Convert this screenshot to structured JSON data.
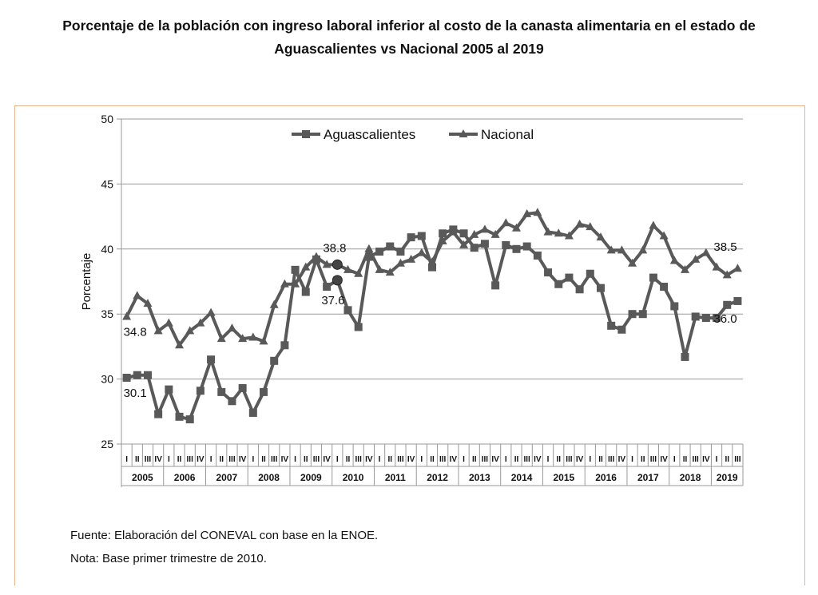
{
  "title_line1": "Porcentaje de la población con ingreso laboral inferior al costo de la canasta alimentaria en el estado de",
  "title_line2": "Aguascalientes vs Nacional 2005 al 2019",
  "chart_data": {
    "type": "line",
    "title": "Porcentaje de la población con ingreso laboral inferior al costo de la canasta alimentaria en el estado de Aguascalientes vs Nacional 2005 al 2019",
    "xlabel": "",
    "ylabel": "Porcentaje",
    "ylim": [
      25,
      50
    ],
    "yticks": [
      25,
      30,
      35,
      40,
      45,
      50
    ],
    "grid": true,
    "legend_position": "top-center",
    "years": [
      "2005",
      "2006",
      "2007",
      "2008",
      "2009",
      "2010",
      "2011",
      "2012",
      "2013",
      "2014",
      "2015",
      "2016",
      "2017",
      "2018",
      "2019"
    ],
    "quarters": [
      "I",
      "II",
      "III",
      "IV"
    ],
    "series": [
      {
        "name": "Aguascalientes",
        "marker": "square",
        "values": [
          30.1,
          30.3,
          30.3,
          27.3,
          29.2,
          27.1,
          26.9,
          29.1,
          31.5,
          29.0,
          28.3,
          29.3,
          27.4,
          29.0,
          31.4,
          32.6,
          38.4,
          36.7,
          39.2,
          37.1,
          37.6,
          35.3,
          34.0,
          39.4,
          39.8,
          40.2,
          39.8,
          40.9,
          41.0,
          38.6,
          41.2,
          41.5,
          41.2,
          40.1,
          40.4,
          37.2,
          40.3,
          40.0,
          40.2,
          39.5,
          38.2,
          37.3,
          37.8,
          36.9,
          38.1,
          37.0,
          34.1,
          33.8,
          35.0,
          35.0,
          37.8,
          37.1,
          35.6,
          31.7,
          34.8,
          34.7,
          34.7,
          35.7,
          36.0
        ]
      },
      {
        "name": "Nacional",
        "marker": "triangle",
        "values": [
          34.8,
          36.4,
          35.8,
          33.7,
          34.3,
          32.6,
          33.7,
          34.3,
          35.1,
          33.1,
          33.9,
          33.1,
          33.2,
          32.9,
          35.7,
          37.3,
          37.3,
          38.6,
          39.4,
          38.8,
          38.8,
          38.4,
          38.1,
          40.0,
          38.4,
          38.2,
          38.9,
          39.2,
          39.7,
          39.0,
          40.6,
          41.3,
          40.3,
          41.1,
          41.5,
          41.1,
          42.0,
          41.6,
          42.7,
          42.8,
          41.3,
          41.2,
          41.0,
          41.9,
          41.7,
          40.9,
          39.9,
          39.9,
          38.9,
          39.9,
          41.8,
          41.0,
          39.1,
          38.4,
          39.2,
          39.7,
          38.6,
          38.0,
          38.5
        ]
      }
    ],
    "annotations": [
      {
        "text": "34.8",
        "series": "Nacional",
        "index": 0
      },
      {
        "text": "30.1",
        "series": "Aguascalientes",
        "index": 0
      },
      {
        "text": "38.8",
        "series": "Nacional",
        "index": 20
      },
      {
        "text": "37.6",
        "series": "Aguascalientes",
        "index": 20
      },
      {
        "text": "38.5",
        "series": "Nacional",
        "index": 58
      },
      {
        "text": "36.0",
        "series": "Aguascalientes",
        "index": 58
      }
    ]
  },
  "footnotes": {
    "source": "Fuente: Elaboración del CONEVAL con base en la ENOE.",
    "note": "Nota: Base primer trimestre de 2010."
  },
  "colors": {
    "line": "#595959",
    "grid": "#999999",
    "frame": "#e8b38f"
  }
}
